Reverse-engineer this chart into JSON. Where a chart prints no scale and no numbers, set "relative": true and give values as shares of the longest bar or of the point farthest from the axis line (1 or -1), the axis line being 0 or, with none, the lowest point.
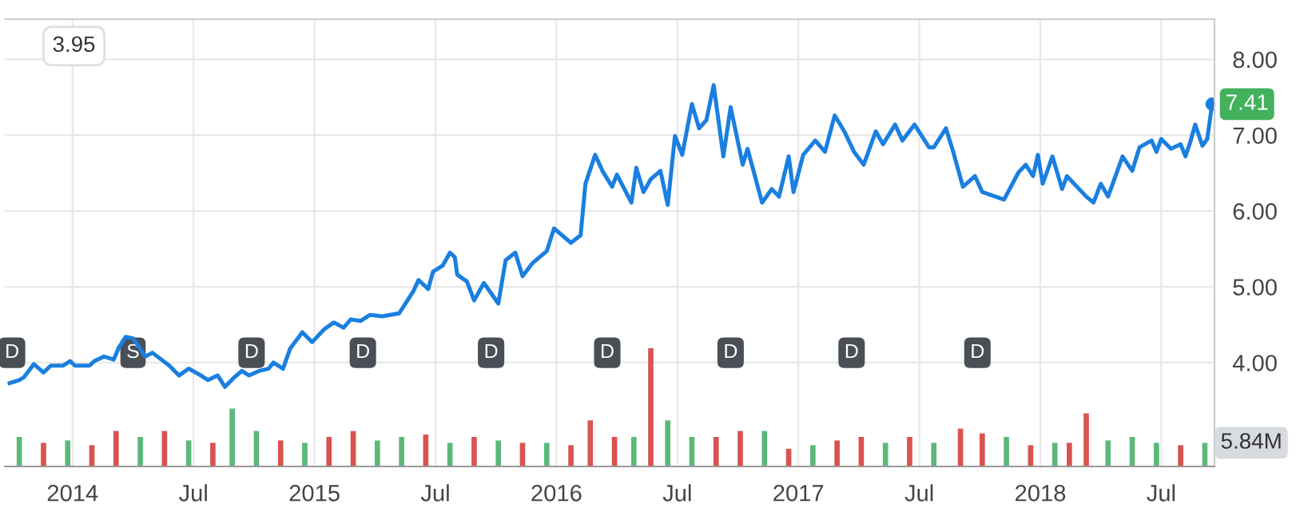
{
  "chart_data": [
    {
      "type": "line",
      "annotations": [
        "3.95",
        {
          "text": "D",
          "x": 2013.75,
          "y": 4.13
        },
        {
          "text": "S",
          "x": 2014.25,
          "y": 4.13
        },
        {
          "text": "D",
          "x": 2014.74,
          "y": 4.13
        },
        {
          "text": "D",
          "x": 2015.2,
          "y": 4.13
        },
        {
          "text": "D",
          "x": 2015.73,
          "y": 4.13
        },
        {
          "text": "D",
          "x": 2016.21,
          "y": 4.13
        },
        {
          "text": "D",
          "x": 2016.72,
          "y": 4.13
        },
        {
          "text": "D",
          "x": 2017.22,
          "y": 4.13
        },
        {
          "text": "D",
          "x": 2017.74,
          "y": 4.13
        }
      ],
      "series": [
        {
          "color": "#1a7fe0",
          "x": [
            2013.74,
            2013.78,
            2013.8,
            2013.84,
            2013.88,
            2013.91,
            2013.96,
            2013.99,
            2014.01,
            2014.07,
            2014.09,
            2014.13,
            2014.17,
            2014.19,
            2014.22,
            2014.25,
            2014.27,
            2014.3,
            2014.33,
            2014.4,
            2014.44,
            2014.48,
            2014.52,
            2014.56,
            2014.6,
            2014.63,
            2014.67,
            2014.7,
            2014.73,
            2014.77,
            2014.81,
            2014.83,
            2014.87,
            2014.9,
            2014.95,
            2014.99,
            2015.04,
            2015.08,
            2015.12,
            2015.15,
            2015.19,
            2015.23,
            2015.28,
            2015.35,
            2015.38,
            2015.41,
            2015.43,
            2015.47,
            2015.49,
            2015.53,
            2015.56,
            2015.58,
            2015.59,
            2015.63,
            2015.66,
            2015.7,
            2015.76,
            2015.79,
            2015.83,
            2015.86,
            2015.9,
            2015.96,
            2015.99,
            2016.06,
            2016.1,
            2016.12,
            2016.16,
            2016.19,
            2016.23,
            2016.25,
            2016.31,
            2016.33,
            2016.36,
            2016.39,
            2016.43,
            2016.46,
            2016.49,
            2016.52,
            2016.56,
            2016.59,
            2016.62,
            2016.65,
            2016.69,
            2016.72,
            2016.77,
            2016.79,
            2016.85,
            2016.89,
            2016.92,
            2016.96,
            2016.98,
            2017.02,
            2017.07,
            2017.11,
            2017.15,
            2017.19,
            2017.23,
            2017.27,
            2017.32,
            2017.35,
            2017.4,
            2017.43,
            2017.48,
            2017.51,
            2017.54,
            2017.56,
            2017.61,
            2017.64,
            2017.68,
            2017.73,
            2017.76,
            2017.85,
            2017.91,
            2017.94,
            2017.97,
            2017.99,
            2018.01,
            2018.05,
            2018.09,
            2018.11,
            2018.19,
            2018.22,
            2018.25,
            2018.28,
            2018.34,
            2018.38,
            2018.41,
            2018.46,
            2018.48,
            2018.5,
            2018.54,
            2018.58,
            2018.6,
            2018.62,
            2018.64,
            2018.67,
            2018.69,
            2018.71
          ],
          "values": [
            3.73,
            3.77,
            3.81,
            3.98,
            3.87,
            3.96,
            3.96,
            4.02,
            3.96,
            3.96,
            4.02,
            4.08,
            4.04,
            4.19,
            4.34,
            4.32,
            4.23,
            4.08,
            4.13,
            3.96,
            3.83,
            3.92,
            3.85,
            3.77,
            3.83,
            3.68,
            3.81,
            3.89,
            3.83,
            3.89,
            3.92,
            4.0,
            3.92,
            4.19,
            4.4,
            4.27,
            4.44,
            4.53,
            4.46,
            4.57,
            4.55,
            4.63,
            4.61,
            4.65,
            4.8,
            4.95,
            5.09,
            4.97,
            5.2,
            5.28,
            5.45,
            5.39,
            5.16,
            5.07,
            4.82,
            5.05,
            4.78,
            5.35,
            5.45,
            5.14,
            5.31,
            5.47,
            5.77,
            5.58,
            5.68,
            6.36,
            6.74,
            6.53,
            6.32,
            6.48,
            6.11,
            6.57,
            6.25,
            6.42,
            6.53,
            6.08,
            6.99,
            6.74,
            7.41,
            7.09,
            7.2,
            7.66,
            6.72,
            7.37,
            6.61,
            6.82,
            6.11,
            6.29,
            6.19,
            6.72,
            6.25,
            6.74,
            6.93,
            6.78,
            7.26,
            7.05,
            6.78,
            6.61,
            7.05,
            6.88,
            7.14,
            6.93,
            7.14,
            6.99,
            6.84,
            6.84,
            7.09,
            6.78,
            6.32,
            6.46,
            6.25,
            6.15,
            6.51,
            6.61,
            6.46,
            6.74,
            6.36,
            6.72,
            6.29,
            6.46,
            6.19,
            6.11,
            6.36,
            6.19,
            6.72,
            6.53,
            6.84,
            6.93,
            6.78,
            6.95,
            6.82,
            6.88,
            6.72,
            6.91,
            7.14,
            6.86,
            6.95,
            7.41
          ],
          "value_labels": [
            null,
            null,
            null,
            null,
            null,
            null,
            null,
            null,
            null,
            null,
            null,
            null,
            null,
            null,
            null,
            null,
            null,
            null,
            null,
            null,
            null,
            null,
            null,
            null,
            null,
            null,
            null,
            null,
            null,
            null,
            null,
            null,
            null,
            null,
            null,
            null,
            null,
            null,
            null,
            null,
            null,
            null,
            null,
            null,
            null,
            null,
            null,
            null,
            null,
            null,
            null,
            null,
            null,
            null,
            null,
            null,
            null,
            null,
            null,
            null,
            null,
            null,
            null,
            null,
            null,
            null,
            null,
            null,
            null,
            null,
            null,
            null,
            null,
            null,
            null,
            null,
            null,
            null,
            null,
            null,
            null,
            null,
            null,
            null,
            null,
            null,
            null,
            null,
            null,
            null,
            null,
            null,
            null,
            null,
            null,
            null,
            null,
            null,
            null,
            null,
            null,
            null,
            null,
            null,
            null,
            null,
            null,
            null,
            null,
            null,
            null,
            null,
            null,
            null,
            null,
            null,
            null,
            null,
            null,
            null,
            null,
            null,
            null,
            null,
            null,
            null,
            null,
            null,
            null,
            null,
            null,
            null,
            null,
            null,
            null,
            null,
            null,
            "7.41"
          ]
        }
      ],
      "xlim": [
        2013.72,
        2018.72
      ],
      "ylim": [
        2.63,
        8.53
      ],
      "xticks": [
        {
          "value": 2014,
          "label": null
        },
        {
          "value": 2014.5,
          "label": null
        },
        {
          "value": 2015,
          "label": null
        },
        {
          "value": 2015.5,
          "label": null
        },
        {
          "value": 2016,
          "label": null
        },
        {
          "value": 2016.5,
          "label": null
        },
        {
          "value": 2017,
          "label": null
        },
        {
          "value": 2017.5,
          "label": null
        },
        {
          "value": 2018,
          "label": null
        },
        {
          "value": 2018.5,
          "label": null
        }
      ],
      "yticks": [
        {
          "value": 4,
          "label": "4.00"
        },
        {
          "value": 5,
          "label": "5.00"
        },
        {
          "value": 6,
          "label": "6.00"
        },
        {
          "value": 7,
          "label": "7.00"
        },
        {
          "value": 8,
          "label": "8.00"
        }
      ],
      "grid": true,
      "tick_labels": "y"
    },
    {
      "type": "bar",
      "relative": true,
      "annotations": [
        "5.84M"
      ],
      "x": [
        2013.78,
        2013.88,
        2013.98,
        2014.08,
        2014.18,
        2014.28,
        2014.38,
        2014.48,
        2014.58,
        2014.66,
        2014.76,
        2014.86,
        2014.96,
        2015.06,
        2015.16,
        2015.26,
        2015.36,
        2015.46,
        2015.56,
        2015.66,
        2015.76,
        2015.86,
        2015.96,
        2016.06,
        2016.14,
        2016.24,
        2016.32,
        2016.39,
        2016.46,
        2016.56,
        2016.66,
        2016.76,
        2016.86,
        2016.96,
        2017.06,
        2017.16,
        2017.26,
        2017.36,
        2017.46,
        2017.56,
        2017.67,
        2017.76,
        2017.86,
        2017.96,
        2018.06,
        2018.12,
        2018.19,
        2018.28,
        2018.38,
        2018.48,
        2018.58,
        2018.68
      ],
      "values": [
        0.25,
        0.2,
        0.22,
        0.18,
        0.3,
        0.25,
        0.3,
        0.22,
        0.2,
        0.49,
        0.3,
        0.22,
        0.2,
        0.25,
        0.3,
        0.22,
        0.25,
        0.27,
        0.2,
        0.25,
        0.22,
        0.2,
        0.2,
        0.18,
        0.39,
        0.25,
        0.25,
        1.0,
        0.39,
        0.25,
        0.25,
        0.3,
        0.3,
        0.15,
        0.18,
        0.22,
        0.25,
        0.2,
        0.25,
        0.2,
        0.32,
        0.28,
        0.25,
        0.18,
        0.2,
        0.2,
        0.45,
        0.22,
        0.25,
        0.2,
        0.18,
        0.2
      ],
      "colors": [
        "#5cb87a",
        "#d9534f",
        "#5cb87a",
        "#d9534f",
        "#d9534f",
        "#5cb87a",
        "#d9534f",
        "#5cb87a",
        "#d9534f",
        "#5cb87a",
        "#5cb87a",
        "#d9534f",
        "#5cb87a",
        "#d9534f",
        "#d9534f",
        "#5cb87a",
        "#5cb87a",
        "#d9534f",
        "#5cb87a",
        "#d9534f",
        "#5cb87a",
        "#d9534f",
        "#5cb87a",
        "#d9534f",
        "#d9534f",
        "#d9534f",
        "#5cb87a",
        "#d9534f",
        "#5cb87a",
        "#5cb87a",
        "#d9534f",
        "#d9534f",
        "#5cb87a",
        "#d9534f",
        "#5cb87a",
        "#d9534f",
        "#d9534f",
        "#5cb87a",
        "#d9534f",
        "#5cb87a",
        "#d9534f",
        "#d9534f",
        "#5cb87a",
        "#d9534f",
        "#5cb87a",
        "#d9534f",
        "#d9534f",
        "#5cb87a",
        "#5cb87a",
        "#5cb87a",
        "#d9534f",
        "#5cb87a"
      ],
      "xlim": [
        2013.72,
        2018.72
      ],
      "xticks": [
        {
          "value": 2014,
          "label": "2014"
        },
        {
          "value": 2014.5,
          "label": "Jul"
        },
        {
          "value": 2015,
          "label": "2015"
        },
        {
          "value": 2015.5,
          "label": "Jul"
        },
        {
          "value": 2016,
          "label": "2016"
        },
        {
          "value": 2016.5,
          "label": "Jul"
        },
        {
          "value": 2017,
          "label": "2017"
        },
        {
          "value": 2017.5,
          "label": "Jul"
        },
        {
          "value": 2018,
          "label": "2018"
        },
        {
          "value": 2018.5,
          "label": "Jul"
        }
      ],
      "tick_labels": "x"
    }
  ]
}
